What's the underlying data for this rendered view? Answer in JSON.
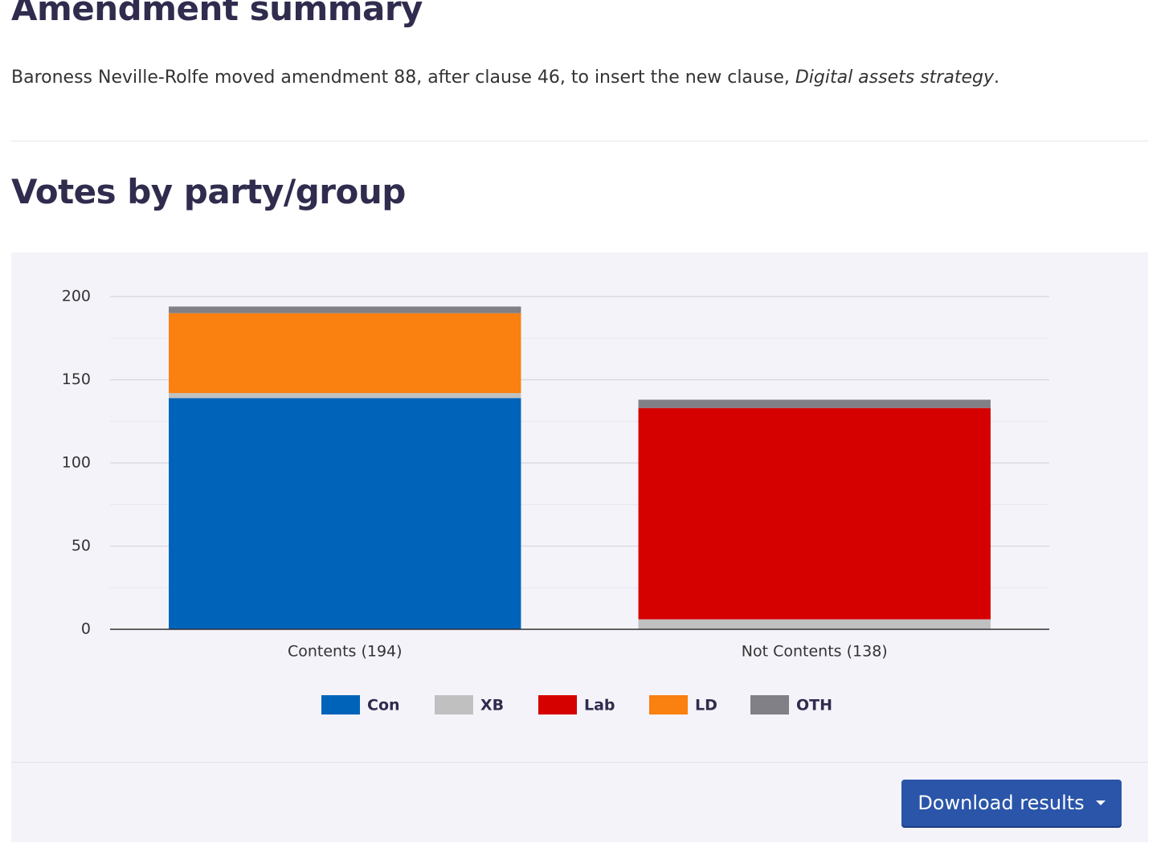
{
  "header": {
    "title": "Amendment summary"
  },
  "summary": {
    "before": "Baroness Neville-Rolfe moved amendment 88, after clause 46, to insert the new clause, ",
    "emphasis": "Digital assets strategy",
    "after": "."
  },
  "section_title": "Votes by party/group",
  "download_button": "Download results",
  "chart_data": {
    "type": "stacked_bar",
    "categories": [
      "Contents (194)",
      "Not Contents (138)"
    ],
    "series": [
      {
        "name": "Con",
        "color": "#0063ba",
        "values": [
          139,
          0
        ]
      },
      {
        "name": "XB",
        "color": "#c0c0c0",
        "values": [
          3,
          6
        ]
      },
      {
        "name": "Lab",
        "color": "#d50000",
        "values": [
          0,
          127
        ]
      },
      {
        "name": "LD",
        "color": "#fa800f",
        "values": [
          48,
          0
        ]
      },
      {
        "name": "OTH",
        "color": "#808086",
        "values": [
          4,
          5
        ]
      }
    ],
    "ylim": [
      0,
      200
    ],
    "yticks": [
      0,
      50,
      100,
      150,
      200
    ],
    "yminorticks": [
      25,
      75,
      125,
      175
    ],
    "grid": true,
    "legend": "bottom"
  }
}
